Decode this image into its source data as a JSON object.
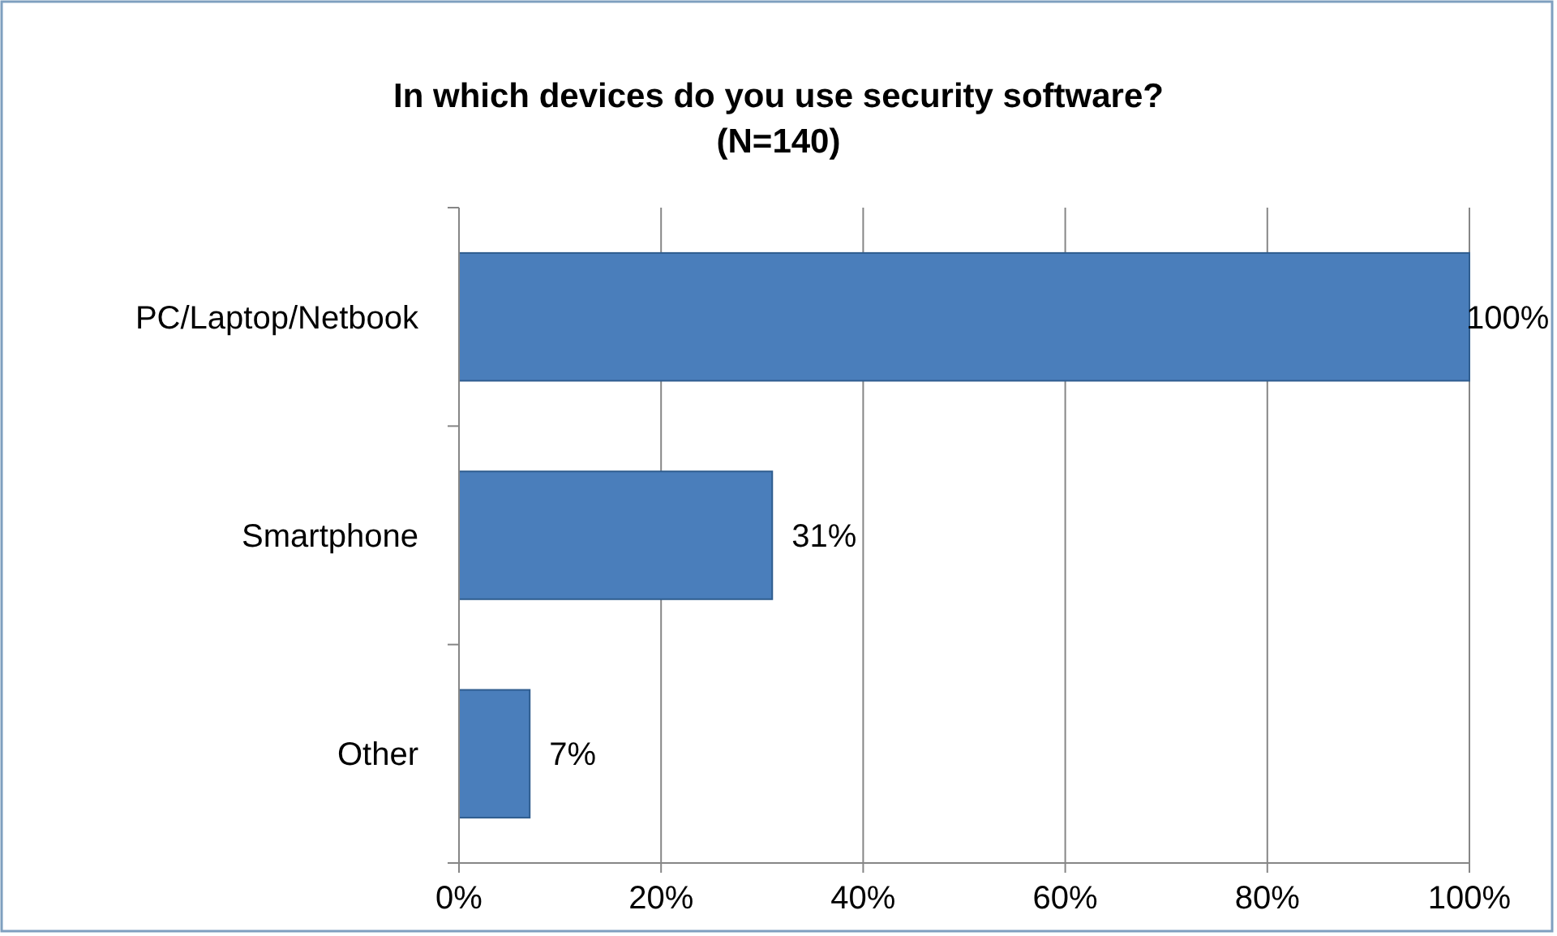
{
  "chart_data": {
    "type": "bar",
    "orientation": "horizontal",
    "title": "In which devices do you use security software?\n(N=140)",
    "categories": [
      "PC/Laptop/Netbook",
      "Smartphone",
      "Other"
    ],
    "values": [
      100,
      31,
      7
    ],
    "value_labels": [
      "100%",
      "31%",
      "7%"
    ],
    "color": "#4a7ebb",
    "xlim": [
      0,
      100
    ],
    "xticks": [
      {
        "value": 0,
        "label": "0%"
      },
      {
        "value": 20,
        "label": "20%"
      },
      {
        "value": 40,
        "label": "40%"
      },
      {
        "value": 60,
        "label": "60%"
      },
      {
        "value": 80,
        "label": "80%"
      },
      {
        "value": 100,
        "label": "100%"
      }
    ],
    "grid": "x"
  }
}
